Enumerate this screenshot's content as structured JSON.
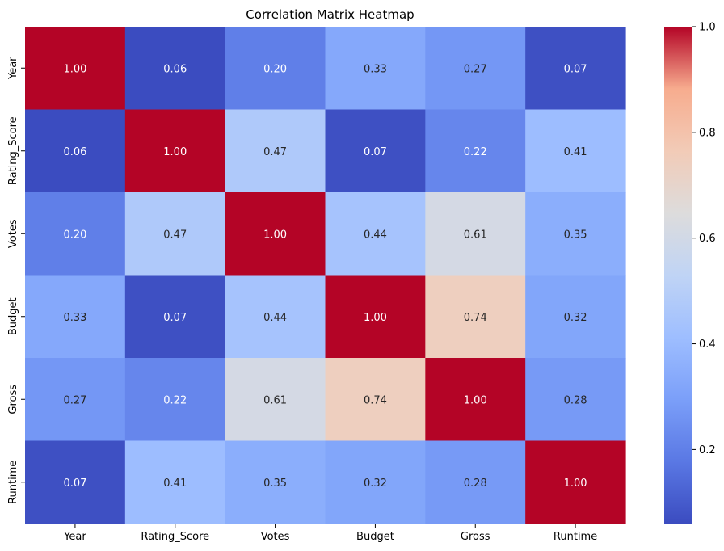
{
  "chart_data": {
    "type": "heatmap",
    "title": "Correlation Matrix Heatmap",
    "xlabel": "",
    "ylabel": "",
    "x_categories": [
      "Year",
      "Rating_Score",
      "Votes",
      "Budget",
      "Gross",
      "Runtime"
    ],
    "y_categories": [
      "Year",
      "Rating_Score",
      "Votes",
      "Budget",
      "Gross",
      "Runtime"
    ],
    "values": [
      [
        1.0,
        0.06,
        0.2,
        0.33,
        0.27,
        0.07
      ],
      [
        0.06,
        1.0,
        0.47,
        0.07,
        0.22,
        0.41
      ],
      [
        0.2,
        0.47,
        1.0,
        0.44,
        0.61,
        0.35
      ],
      [
        0.33,
        0.07,
        0.44,
        1.0,
        0.74,
        0.32
      ],
      [
        0.27,
        0.22,
        0.61,
        0.74,
        1.0,
        0.28
      ],
      [
        0.07,
        0.41,
        0.35,
        0.32,
        0.28,
        1.0
      ]
    ],
    "value_format": "0.00",
    "colormap": "coolwarm",
    "color_range": [
      0.06,
      1.0
    ],
    "colorbar": {
      "placement": "right",
      "ticks": [
        0.2,
        0.4,
        0.6,
        0.8,
        1.0
      ],
      "tick_labels": [
        "0.2",
        "0.4",
        "0.6",
        "0.8",
        "1.0"
      ]
    },
    "grid": false
  }
}
